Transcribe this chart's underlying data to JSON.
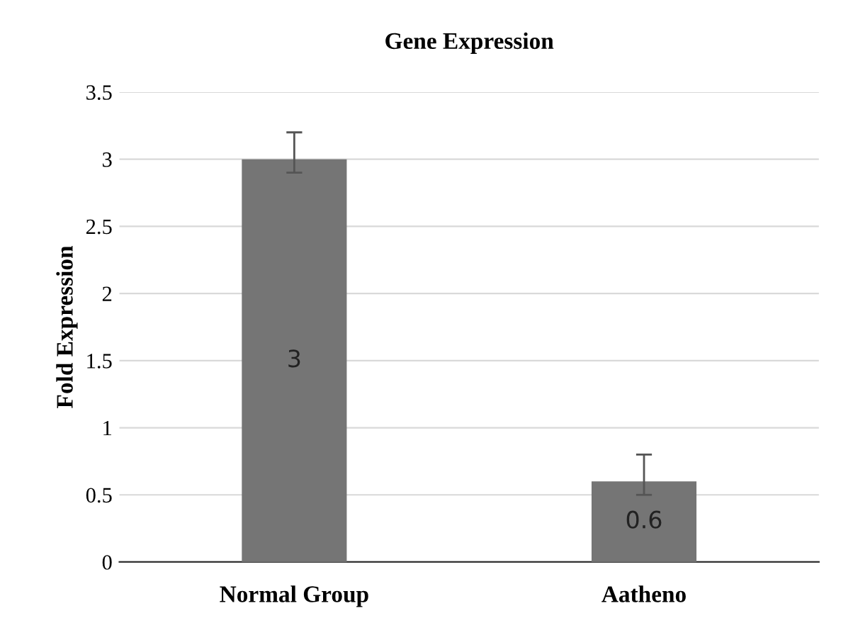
{
  "chart_data": {
    "type": "bar",
    "title": "Gene Expression",
    "ylabel": "Fold Expression",
    "categories": [
      "Normal Group",
      "Aatheno"
    ],
    "values": [
      3,
      0.6
    ],
    "errors": [
      [
        2.9,
        3.2
      ],
      [
        0.5,
        0.8
      ]
    ],
    "color": "#757575",
    "data_labels": true,
    "ylim": [
      0,
      3.5
    ],
    "yticks": [
      0,
      0.5,
      1,
      1.5,
      2,
      2.5,
      3,
      3.5
    ],
    "grid": "y"
  }
}
